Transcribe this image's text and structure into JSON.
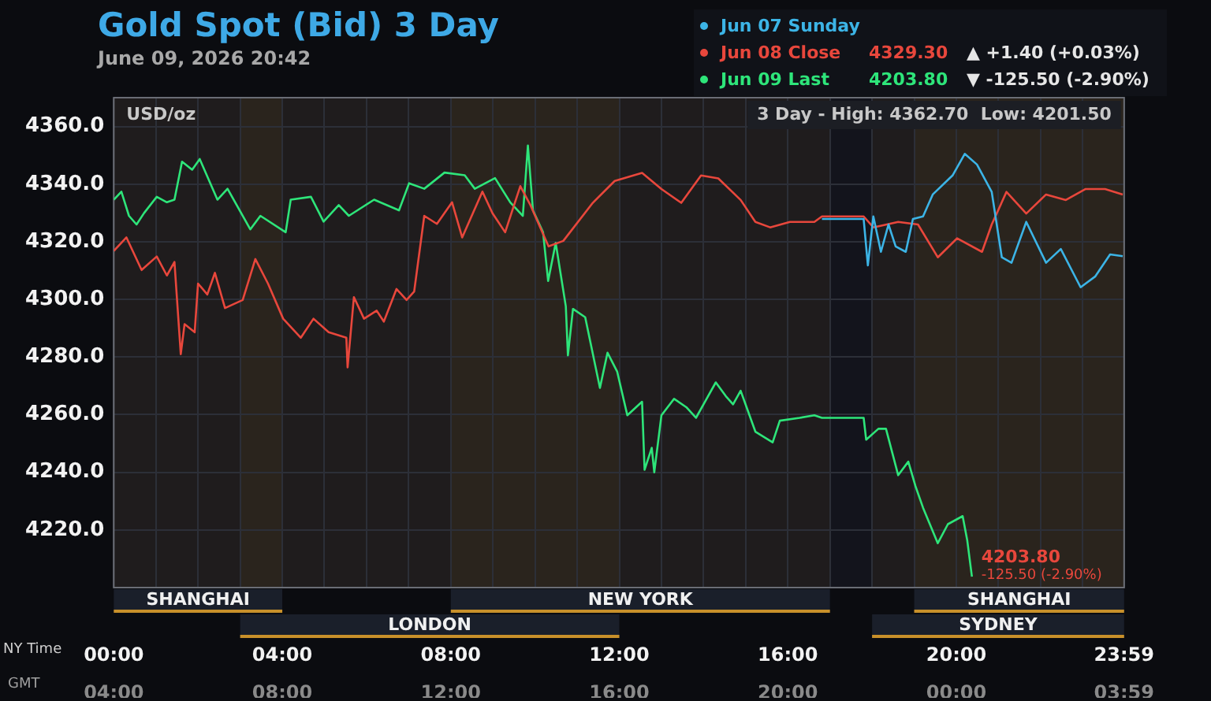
{
  "chart_data": {
    "type": "line",
    "title": "Gold Spot (Bid) 3 Day",
    "subtitle": "June 09, 2026 20:42",
    "ylabel": "USD/oz",
    "xlabel": "NY Time",
    "x2label": "GMT",
    "xlim": [
      0,
      23.983
    ],
    "xticks": [
      {
        "value": 0,
        "label": "00:00"
      },
      {
        "value": 1,
        "label": null
      },
      {
        "value": 2,
        "label": null
      },
      {
        "value": 3,
        "label": null
      },
      {
        "value": 4,
        "label": "04:00"
      },
      {
        "value": 5,
        "label": null
      },
      {
        "value": 6,
        "label": null
      },
      {
        "value": 7,
        "label": null
      },
      {
        "value": 8,
        "label": "08:00"
      },
      {
        "value": 9,
        "label": null
      },
      {
        "value": 10,
        "label": null
      },
      {
        "value": 11,
        "label": null
      },
      {
        "value": 12,
        "label": "12:00"
      },
      {
        "value": 13,
        "label": null
      },
      {
        "value": 14,
        "label": null
      },
      {
        "value": 15,
        "label": null
      },
      {
        "value": 16,
        "label": "16:00"
      },
      {
        "value": 17,
        "label": null
      },
      {
        "value": 18,
        "label": null
      },
      {
        "value": 19,
        "label": null
      },
      {
        "value": 20,
        "label": "20:00"
      },
      {
        "value": 21,
        "label": null
      },
      {
        "value": 22,
        "label": null
      },
      {
        "value": 23,
        "label": null
      },
      {
        "value": 23.983,
        "label": "23:59"
      }
    ],
    "x2lim": [
      "2026-06-09T04:00",
      "2026-06-10T03:59"
    ],
    "x2ticks": [
      {
        "value": "2026-06-09T04:00",
        "label": "04:00"
      },
      {
        "value": "2026-06-09T08:00",
        "label": "08:00"
      },
      {
        "value": "2026-06-09T12:00",
        "label": "12:00"
      },
      {
        "value": "2026-06-09T16:00",
        "label": "16:00"
      },
      {
        "value": "2026-06-09T20:00",
        "label": "20:00"
      },
      {
        "value": "2026-06-10T00:00",
        "label": "00:00"
      },
      {
        "value": "2026-06-10T03:59",
        "label": "03:59"
      }
    ],
    "ylim": [
      4200,
      4370
    ],
    "yticks": [
      {
        "value": 4220,
        "label": "4220.0"
      },
      {
        "value": 4240,
        "label": "4240.0"
      },
      {
        "value": 4260,
        "label": "4260.0"
      },
      {
        "value": 4280,
        "label": "4280.0"
      },
      {
        "value": 4300,
        "label": "4300.0"
      },
      {
        "value": 4320,
        "label": "4320.0"
      },
      {
        "value": 4340,
        "label": "4340.0"
      },
      {
        "value": 4360,
        "label": "4360.0"
      }
    ],
    "grid": true,
    "legend": "top right",
    "series": [
      {
        "name": "Jun 07 Sunday",
        "color": "#3cb4e6",
        "x": [
          16.81,
          17.8,
          17.9,
          18.03,
          18.21,
          18.39,
          18.56,
          18.8,
          18.97,
          19.21,
          19.44,
          19.91,
          20.2,
          20.49,
          20.84,
          21.08,
          21.31,
          21.66,
          22.13,
          22.48,
          22.95,
          23.3,
          23.65,
          23.95
        ],
        "values": [
          4327.9,
          4327.9,
          4311.8,
          4328.8,
          4316.5,
          4326,
          4318.4,
          4316.5,
          4327.9,
          4328.8,
          4336.4,
          4343,
          4350.5,
          4346.8,
          4337.3,
          4314.6,
          4312.7,
          4326.9,
          4312.7,
          4317.5,
          4304.2,
          4308,
          4315.6,
          4315
        ]
      },
      {
        "name": "Jun 08 Close",
        "color": "#e8473c",
        "x": [
          0,
          0.3,
          0.66,
          1.02,
          1.26,
          1.44,
          1.59,
          1.68,
          1.92,
          2.0,
          2.22,
          2.4,
          2.64,
          3.06,
          3.36,
          3.66,
          4.02,
          4.44,
          4.74,
          5.1,
          5.52,
          5.55,
          5.7,
          5.94,
          6.24,
          6.41,
          6.71,
          6.95,
          7.13,
          7.37,
          7.67,
          8.03,
          8.27,
          8.75,
          8.99,
          9.29,
          9.65,
          9.89,
          10.32,
          10.67,
          11.37,
          11.89,
          12.54,
          13.0,
          13.47,
          13.94,
          14.35,
          14.88,
          15.23,
          15.58,
          16.05,
          16.63,
          16.81,
          17.8,
          18.03,
          18.62,
          19.09,
          19.56,
          20.02,
          20.61,
          20.84,
          21.19,
          21.66,
          22.13,
          22.6,
          23.07,
          23.53,
          23.95
        ],
        "values": [
          4316.8,
          4321.5,
          4310.2,
          4314.9,
          4308.3,
          4313,
          4281,
          4291.4,
          4288.6,
          4305.5,
          4301.7,
          4309.2,
          4297,
          4299.8,
          4314,
          4305.5,
          4293.3,
          4286.7,
          4293.3,
          4288.6,
          4286.7,
          4276.4,
          4300.8,
          4293.3,
          4296.1,
          4292.3,
          4303.6,
          4299.8,
          4302.7,
          4329,
          4326.2,
          4333.7,
          4321.5,
          4337.4,
          4329.9,
          4323.3,
          4339.3,
          4332.7,
          4318.4,
          4320.3,
          4333.5,
          4341.1,
          4343.9,
          4338.3,
          4333.5,
          4343,
          4342,
          4334.5,
          4326.9,
          4325,
          4326.9,
          4326.9,
          4328.8,
          4328.8,
          4325,
          4326.9,
          4326,
          4314.6,
          4321.2,
          4316.5,
          4326,
          4337.3,
          4329.8,
          4336.4,
          4334.5,
          4338.3,
          4338.3,
          4336.4
        ]
      },
      {
        "name": "Jun 09 Last",
        "color": "#2ee57a",
        "x": [
          0,
          0.18,
          0.36,
          0.54,
          0.72,
          1.02,
          1.26,
          1.44,
          1.62,
          1.86,
          2.04,
          2.46,
          2.7,
          3.24,
          3.48,
          4.08,
          4.2,
          4.68,
          4.98,
          5.34,
          5.58,
          6.18,
          6.77,
          7.01,
          7.37,
          7.85,
          8.33,
          8.57,
          9.05,
          9.41,
          9.71,
          9.83,
          9.95,
          10.19,
          10.31,
          10.49,
          10.73,
          10.78,
          10.9,
          11.19,
          11.54,
          11.72,
          11.95,
          12.19,
          12.54,
          12.6,
          12.77,
          12.83,
          13.0,
          13.3,
          13.59,
          13.82,
          14.29,
          14.53,
          14.7,
          14.88,
          15.23,
          15.64,
          15.81,
          16.28,
          16.63,
          16.81,
          17.8,
          17.86,
          18.15,
          18.33,
          18.62,
          18.86,
          19.03,
          19.21,
          19.56,
          19.8,
          20.15,
          20.26,
          20.37
        ],
        "values": [
          4334.6,
          4337.4,
          4329,
          4326,
          4330,
          4335.6,
          4333.7,
          4334.6,
          4347.8,
          4345,
          4348.7,
          4334.6,
          4338.4,
          4324.3,
          4329,
          4323.3,
          4334.6,
          4335.6,
          4327,
          4332.7,
          4329,
          4334.6,
          4330.9,
          4340.3,
          4338.4,
          4344,
          4343.1,
          4338.4,
          4342.1,
          4333.7,
          4329,
          4353.4,
          4330.9,
          4323.3,
          4306.4,
          4319.6,
          4297.6,
          4280.6,
          4296.7,
          4293.8,
          4269.3,
          4281.5,
          4274.9,
          4259.8,
          4264.5,
          4240.9,
          4248.5,
          4240,
          4259.8,
          4265.5,
          4262.6,
          4258.9,
          4271.2,
          4266.4,
          4263.6,
          4268.3,
          4254.1,
          4250.4,
          4257.9,
          4258.9,
          4259.8,
          4258.9,
          4258.9,
          4251.3,
          4255.1,
          4255.1,
          4239,
          4243.7,
          4235.2,
          4227.7,
          4215.4,
          4222,
          4224.8,
          4216.3,
          4203.8
        ]
      }
    ],
    "bands": [
      {
        "axis": "x",
        "from": 0,
        "to": 4,
        "label": "SHANGHAI",
        "color": "#c8902a"
      },
      {
        "axis": "x",
        "from": 3,
        "to": 12,
        "label": "LONDON",
        "color": "#c8902a"
      },
      {
        "axis": "x",
        "from": 8,
        "to": 17,
        "label": "NEW YORK",
        "color": "#c8902a"
      },
      {
        "axis": "x",
        "from": 19,
        "to": 23.983,
        "label": "SHANGHAI",
        "color": "#c8902a"
      },
      {
        "axis": "x",
        "from": 18,
        "to": 23.983,
        "label": "SYDNEY",
        "color": "#c8902a"
      }
    ],
    "annotations": [
      "4329.30",
      "▲ +1.40 (+0.03%)",
      "4203.80",
      "▼ -125.50 (-2.90%)",
      "3 Day - High: 4362.70  Low: 4201.50",
      {
        "text": "4203.80",
        "x": 20.37,
        "y": 4203.8
      },
      {
        "text": "-125.50 (-2.90%)",
        "x": 20.37,
        "y": 4203.8
      }
    ]
  }
}
